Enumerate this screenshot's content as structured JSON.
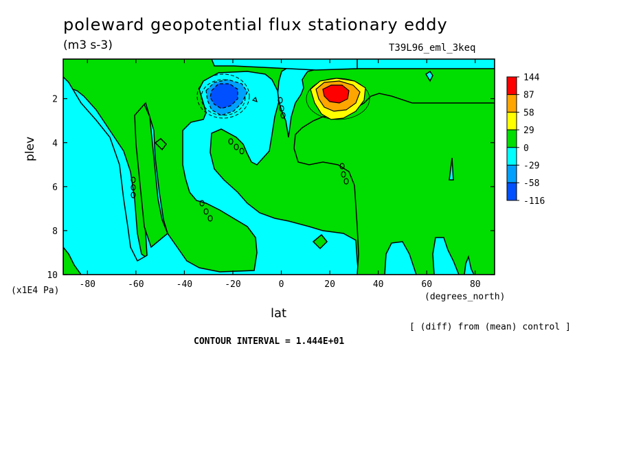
{
  "header": {
    "title": "poleward geopotential flux stationary eddy",
    "units": "(m3 s-3)",
    "run_name": "T39L96_eml_3keq"
  },
  "axes": {
    "ylabel": "plev",
    "yunit": "(x1E4 Pa)",
    "xlabel": "lat",
    "xunit": "(degrees_north)"
  },
  "footer": {
    "diff_note": "[ (diff) from (mean) control ]",
    "contour_interval": "CONTOUR INTERVAL = 1.444E+01"
  },
  "chart_data": {
    "type": "heatmap",
    "title": "poleward geopotential flux stationary eddy",
    "xlabel": "lat",
    "ylabel": "plev",
    "xlim": [
      -90,
      88
    ],
    "ylim": [
      10,
      0.2
    ],
    "x_ticks": [
      -80,
      -60,
      -40,
      -20,
      0,
      20,
      40,
      60,
      80
    ],
    "y_ticks": [
      2,
      4,
      6,
      8,
      10
    ],
    "legend": {
      "levels": [
        "144",
        "87",
        "58",
        "29",
        "0",
        "-29",
        "-58",
        "-116"
      ],
      "colors": [
        "#ff0000",
        "#ffa500",
        "#ffff00",
        "#00dd00",
        "#00ffff",
        "#00a0ff",
        "#0050ff"
      ]
    },
    "features": [
      {
        "kind": "positive_max",
        "lat": 22,
        "plev": 1.8,
        "value": 144
      },
      {
        "kind": "negative_min",
        "lat": -22,
        "plev": 1.8,
        "value": -116
      }
    ]
  }
}
